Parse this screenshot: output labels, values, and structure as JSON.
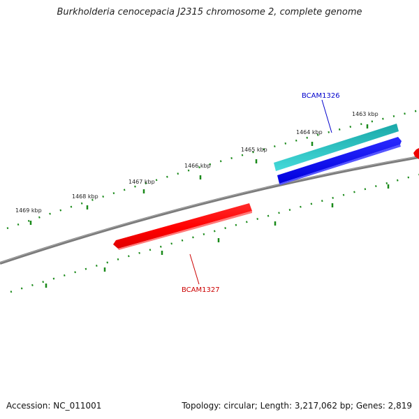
{
  "title": "Burkholderia cenocepacia J2315 chromosome 2, complete genome",
  "ticks": [
    {
      "label": "1463 kbp"
    },
    {
      "label": "1464 kbp"
    },
    {
      "label": "1465 kbp"
    },
    {
      "label": "1466 kbp"
    },
    {
      "label": "1467 kbp"
    },
    {
      "label": "1468 kbp"
    },
    {
      "label": "1469 kbp"
    }
  ],
  "genes": [
    {
      "label": "BCAM1326",
      "strand": "forward",
      "color": "#0000cc"
    },
    {
      "label": "BCAM1327",
      "strand": "reverse",
      "color": "#cc0000"
    }
  ],
  "feature_colors": {
    "cds_forward": "#0000ee",
    "cds_reverse": "#ff0000",
    "gene_forward": "#22c8c8",
    "backbone": "#808080",
    "scale_ticks": "#1a8a1a"
  },
  "footer": {
    "accession": "Accession: NC_011001",
    "topology": "Topology: circular; Length: 3,217,062 bp; Genes: 2,819"
  }
}
